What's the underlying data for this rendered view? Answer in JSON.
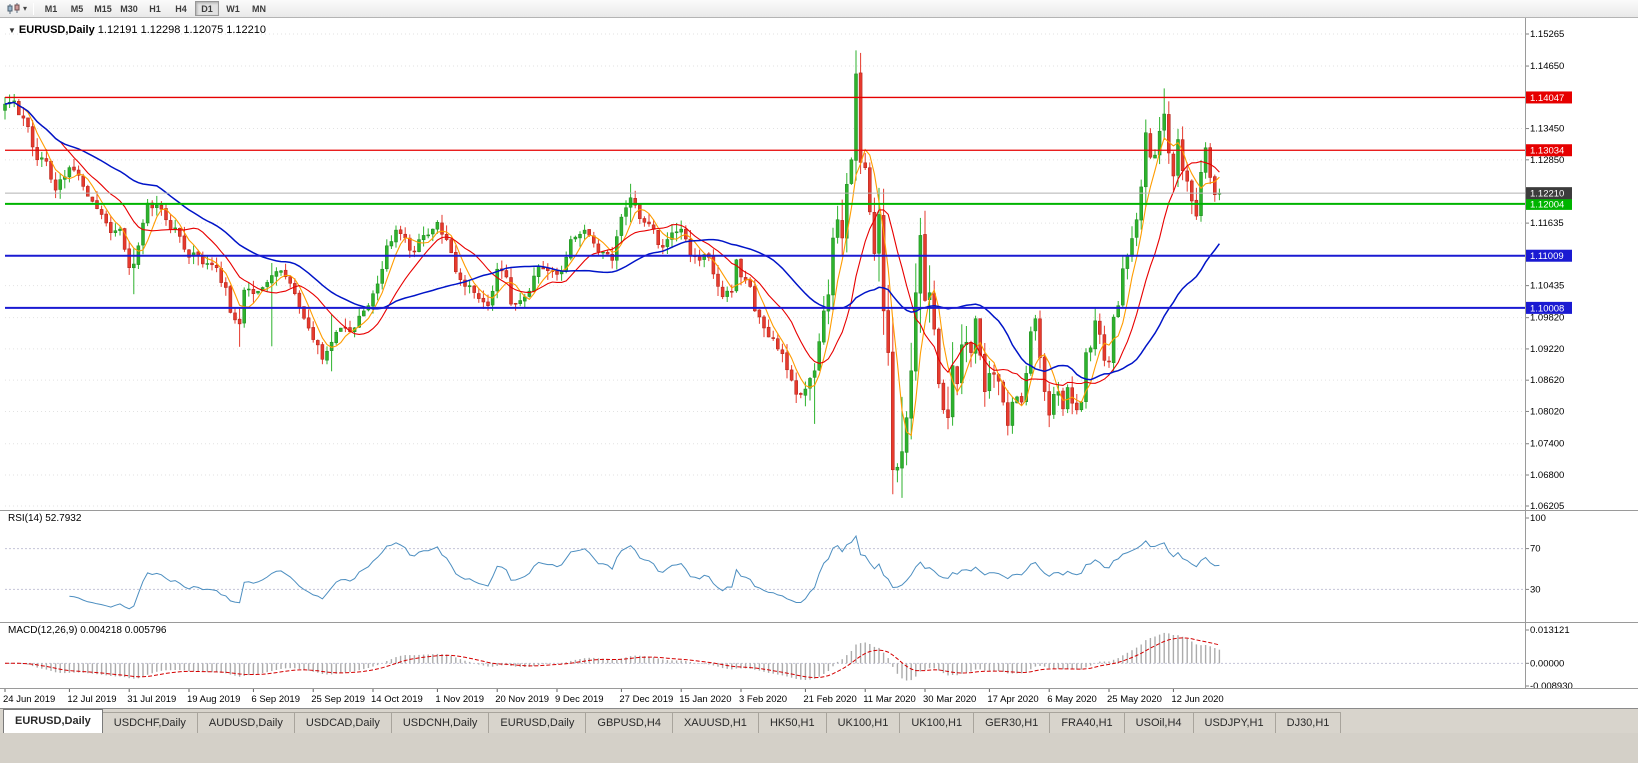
{
  "toolbar": {
    "chart_type_icon": "candlestick-chart-icon",
    "dropdown_glyph": "▾",
    "timeframes": [
      "M1",
      "M5",
      "M15",
      "M30",
      "H1",
      "H4",
      "D1",
      "W1",
      "MN"
    ],
    "active_timeframe": "D1"
  },
  "chart_header": {
    "collapse_icon": "▼",
    "title": "EURUSD,Daily",
    "ohlc": "1.12191 1.12298 1.12075 1.12210"
  },
  "rsi_panel": {
    "label": "RSI(14) 52.7932",
    "period": 14,
    "value": 52.7932,
    "line_color": "#4c8ec0",
    "scale": [
      {
        "label": "100",
        "value": 100
      },
      {
        "label": "70",
        "value": 70
      },
      {
        "label": "30",
        "value": 30
      }
    ],
    "levels": [
      70,
      30
    ],
    "range": [
      0,
      100
    ]
  },
  "macd_panel": {
    "label": "MACD(12,26,9) 0.004218 0.005796",
    "fast": 12,
    "slow": 26,
    "signal": 9,
    "main_value": 0.004218,
    "signal_value": 0.005796,
    "histogram_color": "#ababab",
    "signal_color": "#d40000",
    "scale": [
      {
        "label": "0.013121",
        "value": 0.013121
      },
      {
        "label": "0.00000",
        "value": 0
      },
      {
        "label": "-0.008930",
        "value": -0.00893
      }
    ],
    "range": [
      -0.00893,
      0.013121
    ]
  },
  "bottom_tabs": {
    "active_index": 0,
    "tabs": [
      "EURUSD,Daily",
      "USDCHF,Daily",
      "AUDUSD,Daily",
      "USDCAD,Daily",
      "USDCNH,Daily",
      "EURUSD,Daily",
      "GBPUSD,H4",
      "XAUUSD,H1",
      "HK50,H1",
      "UK100,H1",
      "UK100,H1",
      "GER30,H1",
      "FRA40,H1",
      "USOil,H4",
      "USDJPY,H1",
      "DJ30,H1"
    ]
  },
  "chart_data": {
    "type": "candlestick",
    "symbol": "EURUSD",
    "timeframe": "Daily",
    "last_ohlc": {
      "open": 1.12191,
      "high": 1.12298,
      "low": 1.12075,
      "close": 1.1221
    },
    "price_range": [
      1.06205,
      1.15265
    ],
    "y_ticks": [
      1.15265,
      1.1465,
      1.1345,
      1.1285,
      1.11635,
      1.10435,
      1.0982,
      1.0922,
      1.0862,
      1.0802,
      1.074,
      1.068,
      1.06205
    ],
    "price_lines": [
      {
        "price": 1.14047,
        "color": "#e60000",
        "role": "resistance"
      },
      {
        "price": 1.13034,
        "color": "#e60000",
        "role": "resistance"
      },
      {
        "price": 1.12004,
        "color": "#00b400",
        "role": "support"
      },
      {
        "price": 1.11009,
        "color": "#1a1ad2",
        "role": "support"
      },
      {
        "price": 1.10008,
        "color": "#1a1ad2",
        "role": "support"
      }
    ],
    "current_price": {
      "value": 1.1221,
      "label": "1.12210",
      "line_color": "#b2b2b2",
      "badge_color": "#3c3c3c"
    },
    "x_labels": [
      "24 Jun 2019",
      "12 Jul 2019",
      "31 Jul 2019",
      "19 Aug 2019",
      "6 Sep 2019",
      "25 Sep 2019",
      "14 Oct 2019",
      "1 Nov 2019",
      "20 Nov 2019",
      "9 Dec 2019",
      "27 Dec 2019",
      "15 Jan 2020",
      "3 Feb 2020",
      "21 Feb 2020",
      "11 Mar 2020",
      "30 Mar 2020",
      "17 Apr 2020",
      "6 May 2020",
      "25 May 2020",
      "12 Jun 2020"
    ],
    "x_label_indices": [
      0,
      14,
      27,
      40,
      54,
      67,
      80,
      94,
      107,
      120,
      134,
      147,
      160,
      174,
      187,
      200,
      214,
      227,
      240,
      254
    ],
    "candle_count": 265,
    "up_color": "#2db22d",
    "up_border": "#1d861d",
    "down_color": "#e63a2e",
    "down_border": "#ae1f14",
    "moving_averages": [
      {
        "period": 5,
        "color": "#ff9c00"
      },
      {
        "period": 13,
        "color": "#e80000"
      },
      {
        "period": 34,
        "color": "#0014c8"
      }
    ],
    "close_anchors": [
      [
        0,
        1.1392
      ],
      [
        2,
        1.1398
      ],
      [
        4,
        1.1365
      ],
      [
        7,
        1.1285
      ],
      [
        9,
        1.1282
      ],
      [
        11,
        1.1227
      ],
      [
        14,
        1.127
      ],
      [
        16,
        1.1255
      ],
      [
        18,
        1.1215
      ],
      [
        21,
        1.118
      ],
      [
        23,
        1.1145
      ],
      [
        25,
        1.1152
      ],
      [
        27,
        1.1078
      ],
      [
        28,
        1.1085
      ],
      [
        29,
        1.112
      ],
      [
        31,
        1.1202
      ],
      [
        33,
        1.1198
      ],
      [
        35,
        1.117
      ],
      [
        38,
        1.1138
      ],
      [
        40,
        1.1098
      ],
      [
        42,
        1.11
      ],
      [
        44,
        1.1086
      ],
      [
        46,
        1.1078
      ],
      [
        48,
        1.104
      ],
      [
        49,
        1.0992
      ],
      [
        51,
        1.097
      ],
      [
        52,
        1.1035
      ],
      [
        54,
        1.1028
      ],
      [
        56,
        1.104
      ],
      [
        58,
        1.1063
      ],
      [
        60,
        1.1072
      ],
      [
        62,
        1.1048
      ],
      [
        64,
        1.1002
      ],
      [
        66,
        1.0962
      ],
      [
        67,
        1.094
      ],
      [
        69,
        1.0902
      ],
      [
        71,
        1.0935
      ],
      [
        73,
        1.0962
      ],
      [
        75,
        1.0955
      ],
      [
        77,
        1.0985
      ],
      [
        79,
        1.1005
      ],
      [
        80,
        1.1028
      ],
      [
        82,
        1.1075
      ],
      [
        83,
        1.112
      ],
      [
        85,
        1.115
      ],
      [
        87,
        1.1135
      ],
      [
        89,
        1.1108
      ],
      [
        91,
        1.114
      ],
      [
        93,
        1.1152
      ],
      [
        94,
        1.1165
      ],
      [
        96,
        1.1132
      ],
      [
        98,
        1.107
      ],
      [
        100,
        1.1042
      ],
      [
        102,
        1.103
      ],
      [
        104,
        1.1012
      ],
      [
        105,
        1.1005
      ],
      [
        107,
        1.1075
      ],
      [
        109,
        1.106
      ],
      [
        110,
        1.1008
      ],
      [
        112,
        1.1015
      ],
      [
        113,
        1.1022
      ],
      [
        115,
        1.1062
      ],
      [
        116,
        1.108
      ],
      [
        118,
        1.1072
      ],
      [
        120,
        1.1065
      ],
      [
        122,
        1.1098
      ],
      [
        123,
        1.1132
      ],
      [
        125,
        1.1142
      ],
      [
        126,
        1.115
      ],
      [
        128,
        1.1125
      ],
      [
        130,
        1.1108
      ],
      [
        132,
        1.1092
      ],
      [
        134,
        1.1175
      ],
      [
        136,
        1.1212
      ],
      [
        138,
        1.1172
      ],
      [
        140,
        1.1162
      ],
      [
        142,
        1.1122
      ],
      [
        144,
        1.1132
      ],
      [
        147,
        1.1152
      ],
      [
        149,
        1.1102
      ],
      [
        151,
        1.1092
      ],
      [
        153,
        1.1098
      ],
      [
        155,
        1.1042
      ],
      [
        156,
        1.1022
      ],
      [
        158,
        1.1032
      ],
      [
        159,
        1.1093
      ],
      [
        160,
        1.106
      ],
      [
        162,
        1.1042
      ],
      [
        163,
        1.0995
      ],
      [
        165,
        1.0962
      ],
      [
        166,
        1.0945
      ],
      [
        168,
        1.0922
      ],
      [
        169,
        1.0913
      ],
      [
        171,
        1.0862
      ],
      [
        172,
        1.0835
      ],
      [
        174,
        1.0845
      ],
      [
        176,
        1.088
      ],
      [
        178,
        1.0995
      ],
      [
        179,
        1.1026
      ],
      [
        180,
        1.1135
      ],
      [
        181,
        1.117
      ],
      [
        182,
        1.1135
      ],
      [
        183,
        1.1238
      ],
      [
        184,
        1.1285
      ],
      [
        185,
        1.145
      ],
      [
        186,
        1.128
      ],
      [
        187,
        1.127
      ],
      [
        188,
        1.1185
      ],
      [
        189,
        1.1105
      ],
      [
        190,
        1.118
      ],
      [
        191,
        1.0995
      ],
      [
        192,
        1.0915
      ],
      [
        193,
        1.069
      ],
      [
        194,
        1.0695
      ],
      [
        195,
        1.0725
      ],
      [
        196,
        1.079
      ],
      [
        197,
        1.088
      ],
      [
        198,
        1.103
      ],
      [
        199,
        1.114
      ],
      [
        200,
        1.1015
      ],
      [
        201,
        1.103
      ],
      [
        202,
        1.096
      ],
      [
        203,
        1.0855
      ],
      [
        204,
        1.0805
      ],
      [
        205,
        1.079
      ],
      [
        206,
        1.089
      ],
      [
        207,
        1.0855
      ],
      [
        208,
        1.093
      ],
      [
        209,
        1.0935
      ],
      [
        210,
        1.0915
      ],
      [
        211,
        1.098
      ],
      [
        212,
        1.091
      ],
      [
        213,
        1.084
      ],
      [
        214,
        1.0875
      ],
      [
        216,
        1.086
      ],
      [
        217,
        1.082
      ],
      [
        218,
        1.0775
      ],
      [
        219,
        1.082
      ],
      [
        220,
        1.083
      ],
      [
        221,
        1.082
      ],
      [
        222,
        1.0875
      ],
      [
        223,
        1.0955
      ],
      [
        224,
        1.098
      ],
      [
        225,
        1.0905
      ],
      [
        226,
        1.084
      ],
      [
        227,
        1.0795
      ],
      [
        228,
        1.0835
      ],
      [
        229,
        1.084
      ],
      [
        230,
        1.0807
      ],
      [
        231,
        1.0848
      ],
      [
        232,
        1.0818
      ],
      [
        233,
        1.0805
      ],
      [
        234,
        1.082
      ],
      [
        235,
        1.0915
      ],
      [
        236,
        1.0924
      ],
      [
        237,
        1.0976
      ],
      [
        238,
        1.095
      ],
      [
        239,
        1.09
      ],
      [
        240,
        1.0897
      ],
      [
        241,
        1.0983
      ],
      [
        242,
        1.1005
      ],
      [
        243,
        1.1076
      ],
      [
        244,
        1.1101
      ],
      [
        245,
        1.1134
      ],
      [
        246,
        1.117
      ],
      [
        247,
        1.1233
      ],
      [
        248,
        1.1337
      ],
      [
        249,
        1.129
      ],
      [
        250,
        1.1294
      ],
      [
        251,
        1.134
      ],
      [
        252,
        1.1373
      ],
      [
        253,
        1.1298
      ],
      [
        254,
        1.1254
      ],
      [
        255,
        1.1324
      ],
      [
        256,
        1.1264
      ],
      [
        257,
        1.1244
      ],
      [
        258,
        1.1206
      ],
      [
        259,
        1.1177
      ],
      [
        260,
        1.1261
      ],
      [
        261,
        1.1308
      ],
      [
        262,
        1.1251
      ],
      [
        263,
        1.1218
      ],
      [
        264,
        1.1221
      ]
    ],
    "wick_overrides": [
      [
        28,
        1.1115,
        1.1027
      ],
      [
        51,
        1.1002,
        1.0926
      ],
      [
        58,
        1.1087,
        1.0927
      ],
      [
        71,
        1.0988,
        1.0879
      ],
      [
        136,
        1.1239,
        1.1165
      ],
      [
        176,
        1.089,
        1.0778
      ],
      [
        185,
        1.1495,
        1.129
      ],
      [
        191,
        1.1189,
        1.0955
      ],
      [
        193,
        1.0981,
        1.0655
      ],
      [
        195,
        1.083,
        1.0636
      ],
      [
        199,
        1.1148,
        1.0953
      ],
      [
        218,
        1.082,
        1.0756
      ],
      [
        248,
        1.1362,
        1.1195
      ],
      [
        252,
        1.1422,
        1.1323
      ]
    ]
  }
}
